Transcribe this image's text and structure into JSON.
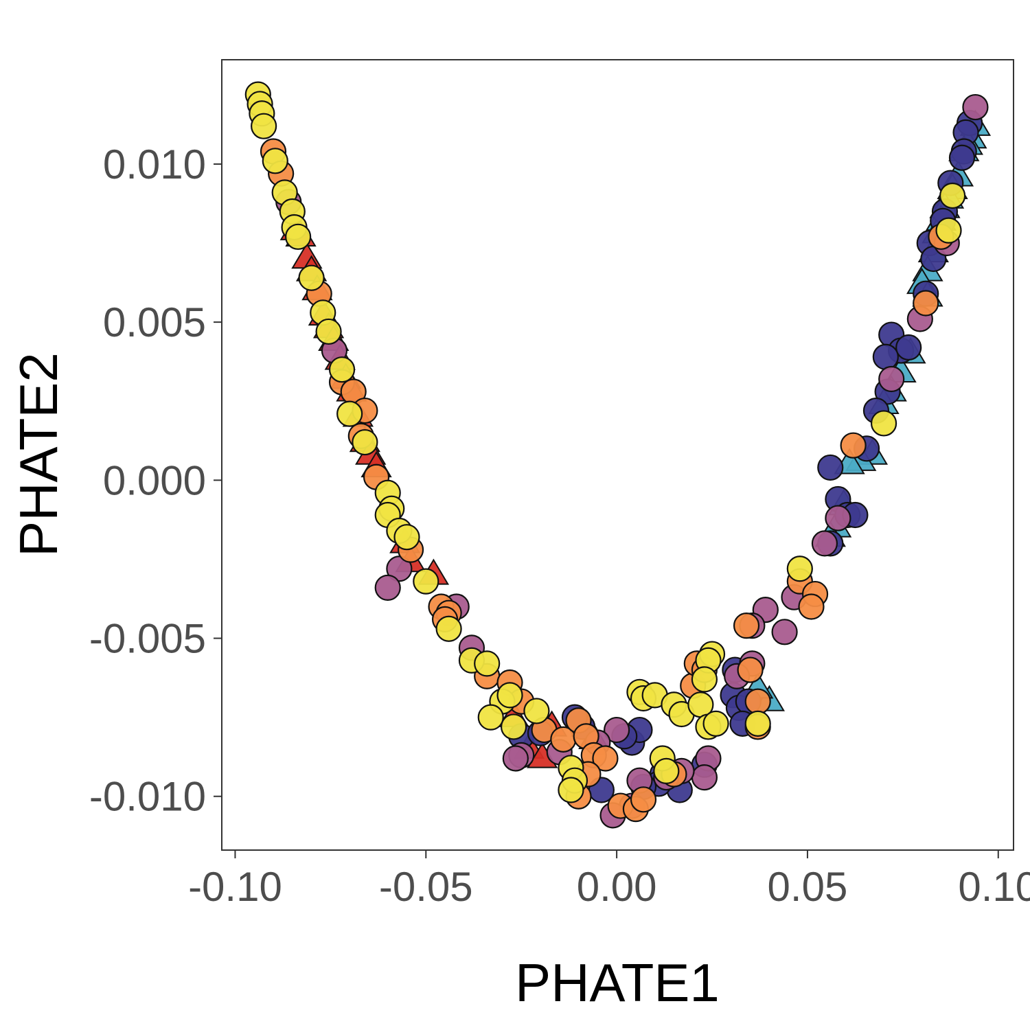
{
  "chart_data": {
    "type": "scatter",
    "xlabel": "PHATE1",
    "ylabel": "PHATE2",
    "xlim": [
      -0.1035,
      0.104
    ],
    "ylim": [
      -0.0117,
      0.0133
    ],
    "grid": false,
    "x_ticks": [
      {
        "value": -0.1,
        "label": "-0.10"
      },
      {
        "value": -0.05,
        "label": "-0.05"
      },
      {
        "value": 0.0,
        "label": "0.00"
      },
      {
        "value": 0.05,
        "label": "0.05"
      },
      {
        "value": 0.1,
        "label": "0.10"
      }
    ],
    "y_ticks": [
      {
        "value": -0.01,
        "label": "-0.010"
      },
      {
        "value": -0.005,
        "label": "-0.005"
      },
      {
        "value": 0.0,
        "label": "0.000"
      },
      {
        "value": 0.005,
        "label": "0.005"
      },
      {
        "value": 0.01,
        "label": "0.010"
      }
    ],
    "group_colors": {
      "red": "#d73027",
      "cyan": "#4bacc6",
      "yellow": "#f0e442",
      "orange": "#f68d45",
      "purple": "#a95c8f",
      "navy": "#3e3a8f"
    },
    "series": [
      {
        "shape": "triangle",
        "color": "red",
        "points": [
          [
            -0.0842,
            0.0079
          ],
          [
            -0.0828,
            0.0077
          ],
          [
            -0.0812,
            0.007
          ],
          [
            -0.08,
            0.0066
          ],
          [
            -0.0785,
            0.006
          ],
          [
            -0.0768,
            0.0052
          ],
          [
            -0.0755,
            0.0048
          ],
          [
            -0.0742,
            0.0044
          ],
          [
            -0.0725,
            0.0038
          ],
          [
            -0.071,
            0.0032
          ],
          [
            -0.0695,
            0.0028
          ],
          [
            -0.0678,
            0.002
          ],
          [
            -0.066,
            0.0012
          ],
          [
            -0.0645,
            0.0008
          ],
          [
            -0.063,
            0.0004
          ],
          [
            -0.0555,
            -0.002
          ],
          [
            -0.054,
            -0.0026
          ],
          [
            -0.048,
            -0.003
          ],
          [
            -0.027,
            -0.0075
          ],
          [
            -0.023,
            -0.0085
          ],
          [
            -0.0195,
            -0.0088
          ],
          [
            -0.017,
            -0.0078
          ],
          [
            -0.008,
            -0.0078
          ],
          [
            -0.006,
            -0.0082
          ]
        ]
      },
      {
        "shape": "triangle",
        "color": "cyan",
        "points": [
          [
            0.094,
            0.0112
          ],
          [
            0.093,
            0.0108
          ],
          [
            0.092,
            0.0106
          ],
          [
            0.091,
            0.0104
          ],
          [
            0.0895,
            0.0096
          ],
          [
            0.088,
            0.0092
          ],
          [
            0.087,
            0.0089
          ],
          [
            0.086,
            0.0086
          ],
          [
            0.085,
            0.0082
          ],
          [
            0.084,
            0.0078
          ],
          [
            0.083,
            0.0072
          ],
          [
            0.0815,
            0.0066
          ],
          [
            0.08,
            0.0062
          ],
          [
            0.0815,
            0.0058
          ],
          [
            0.077,
            0.004
          ],
          [
            0.0745,
            0.0034
          ],
          [
            0.072,
            0.0028
          ],
          [
            0.07,
            0.0024
          ],
          [
            0.067,
            0.0008
          ],
          [
            0.064,
            0.0006
          ],
          [
            0.061,
            0.0005
          ],
          [
            0.0595,
            -0.0008
          ],
          [
            0.0575,
            -0.0015
          ],
          [
            0.056,
            -0.0018
          ],
          [
            0.04,
            -0.007
          ],
          [
            0.037,
            -0.0066
          ]
        ]
      },
      {
        "shape": "circle",
        "color": "navy",
        "points": [
          [
            0.0925,
            0.0113
          ],
          [
            0.0915,
            0.011
          ],
          [
            0.091,
            0.0104
          ],
          [
            0.0905,
            0.0102
          ],
          [
            0.0875,
            0.0094
          ],
          [
            0.086,
            0.0085
          ],
          [
            0.0855,
            0.0082
          ],
          [
            0.082,
            0.0075
          ],
          [
            0.083,
            0.007
          ],
          [
            0.081,
            0.0059
          ],
          [
            0.072,
            0.0046
          ],
          [
            0.0745,
            0.0041
          ],
          [
            0.0765,
            0.0042
          ],
          [
            0.0705,
            0.0039
          ],
          [
            0.071,
            0.0028
          ],
          [
            0.068,
            0.0022
          ],
          [
            0.0655,
            0.001
          ],
          [
            0.056,
            0.0004
          ],
          [
            0.058,
            -0.0006
          ],
          [
            0.0605,
            -0.0011
          ],
          [
            0.0625,
            -0.0011
          ],
          [
            0.056,
            -0.002
          ],
          [
            0.031,
            -0.006
          ],
          [
            0.0305,
            -0.0068
          ],
          [
            0.032,
            -0.0072
          ],
          [
            0.0345,
            -0.007
          ],
          [
            0.033,
            -0.0077
          ],
          [
            0.023,
            -0.009
          ],
          [
            0.0165,
            -0.0098
          ],
          [
            0.012,
            -0.0093
          ],
          [
            0.011,
            -0.0096
          ],
          [
            0.004,
            -0.0083
          ],
          [
            0.006,
            -0.0079
          ],
          [
            0.002,
            -0.0081
          ],
          [
            0.007,
            -0.0097
          ],
          [
            -0.004,
            -0.0098
          ],
          [
            -0.009,
            -0.0078
          ],
          [
            -0.011,
            -0.0075
          ],
          [
            -0.025,
            -0.0081
          ],
          [
            -0.02,
            -0.008
          ]
        ]
      },
      {
        "shape": "circle",
        "color": "purple",
        "points": [
          [
            0.094,
            0.0118
          ],
          [
            0.0865,
            0.0075
          ],
          [
            0.0795,
            0.0051
          ],
          [
            0.072,
            0.0032
          ],
          [
            0.058,
            -0.0012
          ],
          [
            0.0545,
            -0.002
          ],
          [
            0.0465,
            -0.0037
          ],
          [
            0.039,
            -0.0041
          ],
          [
            0.0355,
            -0.0046
          ],
          [
            0.044,
            -0.0048
          ],
          [
            0.0355,
            -0.0058
          ],
          [
            0.0315,
            -0.0062
          ],
          [
            0.024,
            -0.0088
          ],
          [
            0.023,
            -0.0094
          ],
          [
            0.017,
            -0.0092
          ],
          [
            0.013,
            -0.0094
          ],
          [
            0.006,
            -0.0095
          ],
          [
            0.004,
            -0.0103
          ],
          [
            -0.001,
            -0.0106
          ],
          [
            0.0,
            -0.0079
          ],
          [
            -0.005,
            -0.0083
          ],
          [
            -0.015,
            -0.0086
          ],
          [
            -0.025,
            -0.0087
          ],
          [
            -0.0265,
            -0.0088
          ],
          [
            -0.042,
            -0.004
          ],
          [
            -0.057,
            -0.0028
          ],
          [
            -0.06,
            -0.0034
          ],
          [
            -0.074,
            0.0041
          ],
          [
            -0.086,
            0.0088
          ],
          [
            -0.038,
            -0.0053
          ]
        ]
      },
      {
        "shape": "circle",
        "color": "orange",
        "points": [
          [
            -0.09,
            0.0104
          ],
          [
            -0.088,
            0.0097
          ],
          [
            -0.078,
            0.0059
          ],
          [
            -0.072,
            0.0031
          ],
          [
            -0.069,
            0.0028
          ],
          [
            -0.066,
            0.0022
          ],
          [
            -0.067,
            0.0014
          ],
          [
            -0.063,
            0.0001
          ],
          [
            -0.054,
            -0.0022
          ],
          [
            -0.046,
            -0.004
          ],
          [
            -0.044,
            -0.0042
          ],
          [
            -0.045,
            -0.0044
          ],
          [
            -0.034,
            -0.0062
          ],
          [
            -0.028,
            -0.0064
          ],
          [
            -0.025,
            -0.007
          ],
          [
            -0.019,
            -0.0079
          ],
          [
            -0.014,
            -0.0082
          ],
          [
            -0.01,
            -0.0076
          ],
          [
            -0.008,
            -0.0081
          ],
          [
            -0.006,
            -0.0087
          ],
          [
            -0.003,
            -0.0088
          ],
          [
            -0.0075,
            -0.0093
          ],
          [
            -0.01,
            -0.01
          ],
          [
            0.001,
            -0.0103
          ],
          [
            0.005,
            -0.0104
          ],
          [
            0.007,
            -0.0101
          ],
          [
            0.015,
            -0.0093
          ],
          [
            0.02,
            -0.0065
          ],
          [
            0.021,
            -0.0058
          ],
          [
            0.023,
            -0.006
          ],
          [
            0.035,
            -0.006
          ],
          [
            0.037,
            -0.007
          ],
          [
            0.037,
            -0.0078
          ],
          [
            0.034,
            -0.0046
          ],
          [
            0.048,
            -0.0032
          ],
          [
            0.052,
            -0.0036
          ],
          [
            0.051,
            -0.004
          ],
          [
            0.062,
            0.0011
          ],
          [
            0.081,
            0.0056
          ],
          [
            0.085,
            0.0077
          ]
        ]
      },
      {
        "shape": "circle",
        "color": "yellow",
        "points": [
          [
            -0.094,
            0.0122
          ],
          [
            -0.0935,
            0.0119
          ],
          [
            -0.093,
            0.0116
          ],
          [
            -0.0925,
            0.0112
          ],
          [
            -0.0895,
            0.0101
          ],
          [
            -0.087,
            0.0091
          ],
          [
            -0.085,
            0.0085
          ],
          [
            -0.0845,
            0.008
          ],
          [
            -0.0835,
            0.0077
          ],
          [
            -0.08,
            0.0064
          ],
          [
            -0.077,
            0.0053
          ],
          [
            -0.0755,
            0.0047
          ],
          [
            -0.072,
            0.0035
          ],
          [
            -0.07,
            0.0021
          ],
          [
            -0.066,
            0.0012
          ],
          [
            -0.06,
            -0.0004
          ],
          [
            -0.059,
            -0.0009
          ],
          [
            -0.06,
            -0.0011
          ],
          [
            -0.057,
            -0.0016
          ],
          [
            -0.055,
            -0.0018
          ],
          [
            -0.05,
            -0.0032
          ],
          [
            -0.044,
            -0.0047
          ],
          [
            -0.038,
            -0.0057
          ],
          [
            -0.034,
            -0.0058
          ],
          [
            -0.03,
            -0.007
          ],
          [
            -0.028,
            -0.0068
          ],
          [
            -0.027,
            -0.0078
          ],
          [
            -0.033,
            -0.0075
          ],
          [
            -0.021,
            -0.0073
          ],
          [
            -0.012,
            -0.0091
          ],
          [
            -0.011,
            -0.0095
          ],
          [
            -0.012,
            -0.0098
          ],
          [
            0.006,
            -0.0067
          ],
          [
            0.007,
            -0.0069
          ],
          [
            0.01,
            -0.0068
          ],
          [
            0.015,
            -0.0071
          ],
          [
            0.017,
            -0.0074
          ],
          [
            0.022,
            -0.0071
          ],
          [
            0.025,
            -0.0055
          ],
          [
            0.024,
            -0.0057
          ],
          [
            0.023,
            -0.0063
          ],
          [
            0.024,
            -0.0078
          ],
          [
            0.026,
            -0.0077
          ],
          [
            0.037,
            -0.0077
          ],
          [
            0.012,
            -0.0088
          ],
          [
            0.013,
            -0.0092
          ],
          [
            0.048,
            -0.0028
          ],
          [
            0.07,
            0.0018
          ],
          [
            0.087,
            0.0079
          ],
          [
            0.088,
            0.009
          ]
        ]
      }
    ]
  }
}
